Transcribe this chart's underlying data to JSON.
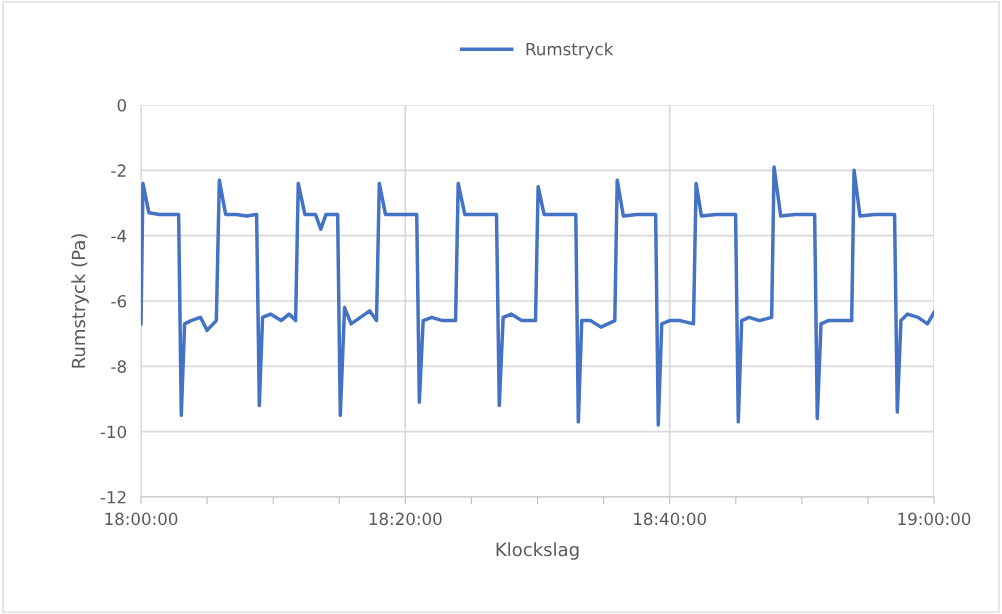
{
  "chart_data": {
    "type": "line",
    "xlabel": "Klockslag",
    "ylabel": "Rumstryck (Pa)",
    "xlim": [
      18,
      19
    ],
    "ylim": [
      -12,
      0
    ],
    "xticks": [
      {
        "value": 18,
        "label": "18:00:00"
      },
      {
        "value": 18.0833,
        "label": null
      },
      {
        "value": 18.1667,
        "label": null
      },
      {
        "value": 18.25,
        "label": null
      },
      {
        "value": 18.3333,
        "label": "18:20:00"
      },
      {
        "value": 18.4167,
        "label": null
      },
      {
        "value": 18.5,
        "label": null
      },
      {
        "value": 18.5833,
        "label": null
      },
      {
        "value": 18.6667,
        "label": "18:40:00"
      },
      {
        "value": 18.75,
        "label": null
      },
      {
        "value": 18.8333,
        "label": null
      },
      {
        "value": 18.9167,
        "label": null
      },
      {
        "value": 19,
        "label": "19:00:00"
      }
    ],
    "yticks": [
      -12,
      -10,
      -8,
      -6,
      -4,
      -2,
      0
    ],
    "grid": true,
    "legend": "top",
    "marker": "none",
    "line_style": "solid",
    "series": [
      {
        "name": "Rumstryck",
        "color": "#4472c4",
        "x": [
          18.0,
          18.0025,
          18.01,
          18.0233,
          18.0367,
          18.0475,
          18.0508,
          18.055,
          18.0633,
          18.075,
          18.0833,
          18.095,
          18.0988,
          18.1067,
          18.12,
          18.1333,
          18.1458,
          18.1492,
          18.1533,
          18.1633,
          18.1767,
          18.1867,
          18.195,
          18.1983,
          18.2067,
          18.22,
          18.2267,
          18.2333,
          18.248,
          18.2513,
          18.2567,
          18.265,
          18.2767,
          18.2883,
          18.297,
          18.3005,
          18.3083,
          18.325,
          18.3477,
          18.351,
          18.3558,
          18.3667,
          18.38,
          18.3967,
          18.4,
          18.4083,
          18.425,
          18.4483,
          18.4518,
          18.4567,
          18.4667,
          18.48,
          18.4975,
          18.5008,
          18.5083,
          18.525,
          18.5483,
          18.5515,
          18.5558,
          18.5667,
          18.58,
          18.5975,
          18.6005,
          18.6083,
          18.625,
          18.649,
          18.6523,
          18.6567,
          18.6667,
          18.68,
          18.6967,
          18.7,
          18.7067,
          18.725,
          18.7498,
          18.7532,
          18.7575,
          18.7667,
          18.78,
          18.7953,
          18.7983,
          18.8067,
          18.825,
          18.8495,
          18.8528,
          18.8575,
          18.8667,
          18.88,
          18.8962,
          18.8992,
          18.9067,
          18.925,
          18.9503,
          18.9537,
          18.9583,
          18.9667,
          18.98,
          18.9917,
          19.0
        ],
        "values": [
          -6.7,
          -2.4,
          -3.3,
          -3.35,
          -3.35,
          -3.35,
          -9.5,
          -6.7,
          -6.6,
          -6.5,
          -6.9,
          -6.6,
          -2.3,
          -3.35,
          -3.35,
          -3.4,
          -3.35,
          -9.2,
          -6.5,
          -6.4,
          -6.6,
          -6.4,
          -6.6,
          -2.4,
          -3.35,
          -3.35,
          -3.8,
          -3.35,
          -3.35,
          -9.5,
          -6.2,
          -6.7,
          -6.5,
          -6.3,
          -6.6,
          -2.4,
          -3.35,
          -3.35,
          -3.35,
          -9.1,
          -6.6,
          -6.5,
          -6.6,
          -6.6,
          -2.4,
          -3.35,
          -3.35,
          -3.35,
          -9.2,
          -6.5,
          -6.4,
          -6.6,
          -6.6,
          -2.5,
          -3.35,
          -3.35,
          -3.35,
          -9.7,
          -6.6,
          -6.6,
          -6.8,
          -6.6,
          -2.3,
          -3.4,
          -3.35,
          -3.35,
          -9.8,
          -6.7,
          -6.6,
          -6.6,
          -6.7,
          -2.4,
          -3.4,
          -3.35,
          -3.35,
          -9.7,
          -6.6,
          -6.5,
          -6.6,
          -6.5,
          -1.9,
          -3.4,
          -3.35,
          -3.35,
          -9.6,
          -6.7,
          -6.6,
          -6.6,
          -6.6,
          -2.0,
          -3.4,
          -3.35,
          -3.35,
          -9.4,
          -6.6,
          -6.4,
          -6.5,
          -6.7,
          -6.35
        ]
      }
    ]
  }
}
